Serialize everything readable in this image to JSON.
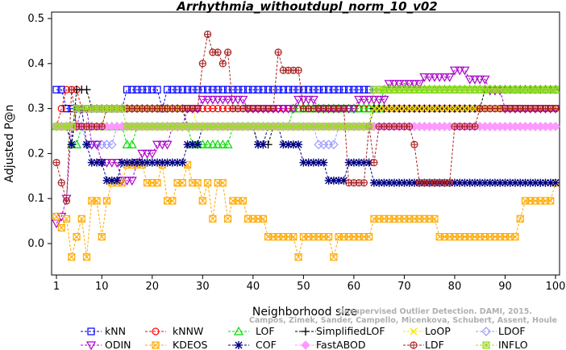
{
  "chart_data": {
    "type": "line",
    "title": "Arrhythmia_withoutdupl_norm_10_v02",
    "xlabel": "Neighborhood size",
    "ylabel": "Adjusted P@n",
    "xlim": [
      1,
      100
    ],
    "ylim": [
      -0.05,
      0.5
    ],
    "x_ticks": [
      1,
      10,
      20,
      30,
      40,
      50,
      60,
      70,
      80,
      90,
      100
    ],
    "y_ticks": [
      0.0,
      0.1,
      0.2,
      0.3,
      0.4,
      0.5
    ],
    "y_tick_labels": [
      "0.0",
      "0.1",
      "0.2",
      "0.3",
      "0.4",
      "0.5"
    ],
    "grid": false,
    "legend_position": "bottom",
    "watermark": [
      "Campos, Zimek, Sander, Campello, Micenkova, Schubert, Assent, Houle",
      "Unsupervised Outlier Detection. DAMI, 2015."
    ],
    "series": [
      {
        "name": "kNN",
        "color": "#0000ff",
        "marker": "square",
        "segments": [
          {
            "from": 1,
            "to": 2,
            "y": 0.342
          },
          {
            "from": 3,
            "to": 14,
            "y": 0.3
          },
          {
            "from": 15,
            "to": 21,
            "y": 0.342
          },
          {
            "from": 22,
            "to": 22,
            "y": 0.3
          },
          {
            "from": 23,
            "to": 100,
            "y": 0.342
          }
        ]
      },
      {
        "name": "kNNW",
        "color": "#ff0000",
        "marker": "circle",
        "segments": [
          {
            "from": 1,
            "to": 1,
            "y": 0.26
          },
          {
            "from": 2,
            "to": 2,
            "y": 0.3
          },
          {
            "from": 3,
            "to": 5,
            "y": 0.342
          },
          {
            "from": 6,
            "to": 26,
            "y": 0.3
          },
          {
            "from": 27,
            "to": 100,
            "y": 0.3
          }
        ]
      },
      {
        "name": "LOF",
        "color": "#00dd00",
        "marker": "triangle-up",
        "segments": [
          {
            "from": 1,
            "to": 3,
            "y": 0.26
          },
          {
            "from": 4,
            "to": 5,
            "y": 0.22
          },
          {
            "from": 6,
            "to": 14,
            "y": 0.26
          },
          {
            "from": 15,
            "to": 16,
            "y": 0.22
          },
          {
            "from": 17,
            "to": 27,
            "y": 0.26
          },
          {
            "from": 28,
            "to": 35,
            "y": 0.22
          },
          {
            "from": 36,
            "to": 47,
            "y": 0.26
          },
          {
            "from": 48,
            "to": 56,
            "y": 0.3
          },
          {
            "from": 57,
            "to": 65,
            "y": 0.3
          },
          {
            "from": 66,
            "to": 100,
            "y": 0.342
          }
        ]
      },
      {
        "name": "SimplifiedLOF",
        "color": "#000000",
        "marker": "plus",
        "segments": [
          {
            "from": 1,
            "to": 3,
            "y": 0.26
          },
          {
            "from": 4,
            "to": 4,
            "y": 0.22
          },
          {
            "from": 5,
            "to": 7,
            "y": 0.342
          },
          {
            "from": 8,
            "to": 15,
            "y": 0.3
          },
          {
            "from": 16,
            "to": 26,
            "y": 0.3
          },
          {
            "from": 27,
            "to": 40,
            "y": 0.26
          },
          {
            "from": 41,
            "to": 43,
            "y": 0.22
          },
          {
            "from": 44,
            "to": 63,
            "y": 0.26
          },
          {
            "from": 64,
            "to": 85,
            "y": 0.3
          },
          {
            "from": 86,
            "to": 100,
            "y": 0.342
          }
        ]
      },
      {
        "name": "LoOP",
        "color": "#f2e600",
        "marker": "cross",
        "segments": [
          {
            "from": 1,
            "to": 10,
            "y": 0.26
          },
          {
            "from": 11,
            "to": 28,
            "y": 0.3
          },
          {
            "from": 29,
            "to": 63,
            "y": 0.26
          },
          {
            "from": 64,
            "to": 100,
            "y": 0.3
          }
        ]
      },
      {
        "name": "LDOF",
        "color": "#9999ff",
        "marker": "diamond",
        "segments": [
          {
            "from": 1,
            "to": 6,
            "y": 0.26
          },
          {
            "from": 7,
            "to": 12,
            "y": 0.22
          },
          {
            "from": 13,
            "to": 33,
            "y": 0.26
          },
          {
            "from": 34,
            "to": 52,
            "y": 0.26
          },
          {
            "from": 53,
            "to": 56,
            "y": 0.22
          },
          {
            "from": 57,
            "to": 84,
            "y": 0.26
          },
          {
            "from": 85,
            "to": 100,
            "y": 0.26
          }
        ]
      },
      {
        "name": "ODIN",
        "color": "#aa00cc",
        "marker": "triangle-down",
        "segments": [
          {
            "from": 1,
            "to": 1,
            "y": 0.045
          },
          {
            "from": 2,
            "to": 2,
            "y": 0.06
          },
          {
            "from": 3,
            "to": 3,
            "y": 0.1
          },
          {
            "from": 4,
            "to": 5,
            "y": 0.26
          },
          {
            "from": 6,
            "to": 7,
            "y": 0.3
          },
          {
            "from": 8,
            "to": 9,
            "y": 0.22
          },
          {
            "from": 10,
            "to": 13,
            "y": 0.18
          },
          {
            "from": 14,
            "to": 16,
            "y": 0.14
          },
          {
            "from": 17,
            "to": 17,
            "y": 0.18
          },
          {
            "from": 18,
            "to": 20,
            "y": 0.2
          },
          {
            "from": 21,
            "to": 23,
            "y": 0.22
          },
          {
            "from": 24,
            "to": 26,
            "y": 0.26
          },
          {
            "from": 27,
            "to": 29,
            "y": 0.3
          },
          {
            "from": 30,
            "to": 38,
            "y": 0.32
          },
          {
            "from": 39,
            "to": 48,
            "y": 0.3
          },
          {
            "from": 49,
            "to": 52,
            "y": 0.32
          },
          {
            "from": 53,
            "to": 60,
            "y": 0.3
          },
          {
            "from": 61,
            "to": 66,
            "y": 0.32
          },
          {
            "from": 67,
            "to": 73,
            "y": 0.355
          },
          {
            "from": 74,
            "to": 79,
            "y": 0.37
          },
          {
            "from": 80,
            "to": 82,
            "y": 0.385
          },
          {
            "from": 83,
            "to": 86,
            "y": 0.365
          },
          {
            "from": 87,
            "to": 89,
            "y": 0.34
          },
          {
            "from": 90,
            "to": 100,
            "y": 0.3
          }
        ]
      },
      {
        "name": "KDEOS",
        "color": "#ffaa00",
        "marker": "square-x",
        "segments": [
          {
            "from": 1,
            "to": 1,
            "y": 0.06
          },
          {
            "from": 2,
            "to": 2,
            "y": 0.035
          },
          {
            "from": 3,
            "to": 3,
            "y": 0.055
          },
          {
            "from": 4,
            "to": 4,
            "y": -0.03
          },
          {
            "from": 5,
            "to": 5,
            "y": 0.015
          },
          {
            "from": 6,
            "to": 6,
            "y": 0.055
          },
          {
            "from": 7,
            "to": 7,
            "y": -0.03
          },
          {
            "from": 8,
            "to": 9,
            "y": 0.095
          },
          {
            "from": 10,
            "to": 10,
            "y": 0.015
          },
          {
            "from": 11,
            "to": 11,
            "y": 0.095
          },
          {
            "from": 12,
            "to": 14,
            "y": 0.135
          },
          {
            "from": 15,
            "to": 18,
            "y": 0.175
          },
          {
            "from": 19,
            "to": 21,
            "y": 0.135
          },
          {
            "from": 22,
            "to": 22,
            "y": 0.175
          },
          {
            "from": 23,
            "to": 24,
            "y": 0.095
          },
          {
            "from": 25,
            "to": 26,
            "y": 0.135
          },
          {
            "from": 27,
            "to": 27,
            "y": 0.175
          },
          {
            "from": 28,
            "to": 29,
            "y": 0.135
          },
          {
            "from": 30,
            "to": 30,
            "y": 0.095
          },
          {
            "from": 31,
            "to": 31,
            "y": 0.135
          },
          {
            "from": 32,
            "to": 32,
            "y": 0.055
          },
          {
            "from": 33,
            "to": 34,
            "y": 0.135
          },
          {
            "from": 35,
            "to": 35,
            "y": 0.055
          },
          {
            "from": 36,
            "to": 38,
            "y": 0.095
          },
          {
            "from": 39,
            "to": 42,
            "y": 0.055
          },
          {
            "from": 43,
            "to": 48,
            "y": 0.015
          },
          {
            "from": 49,
            "to": 49,
            "y": -0.03
          },
          {
            "from": 50,
            "to": 55,
            "y": 0.015
          },
          {
            "from": 56,
            "to": 56,
            "y": -0.03
          },
          {
            "from": 57,
            "to": 63,
            "y": 0.015
          },
          {
            "from": 64,
            "to": 76,
            "y": 0.055
          },
          {
            "from": 77,
            "to": 92,
            "y": 0.015
          },
          {
            "from": 93,
            "to": 93,
            "y": 0.055
          },
          {
            "from": 94,
            "to": 99,
            "y": 0.095
          },
          {
            "from": 100,
            "to": 100,
            "y": 0.135
          }
        ]
      },
      {
        "name": "COF",
        "color": "#000080",
        "marker": "asterisk",
        "segments": [
          {
            "from": 1,
            "to": 3,
            "y": 0.26
          },
          {
            "from": 4,
            "to": 4,
            "y": 0.22
          },
          {
            "from": 5,
            "to": 6,
            "y": 0.3
          },
          {
            "from": 7,
            "to": 7,
            "y": 0.22
          },
          {
            "from": 8,
            "to": 10,
            "y": 0.18
          },
          {
            "from": 11,
            "to": 13,
            "y": 0.14
          },
          {
            "from": 14,
            "to": 18,
            "y": 0.18
          },
          {
            "from": 19,
            "to": 26,
            "y": 0.18
          },
          {
            "from": 27,
            "to": 29,
            "y": 0.22
          },
          {
            "from": 30,
            "to": 40,
            "y": 0.26
          },
          {
            "from": 41,
            "to": 42,
            "y": 0.22
          },
          {
            "from": 43,
            "to": 45,
            "y": 0.26
          },
          {
            "from": 46,
            "to": 49,
            "y": 0.22
          },
          {
            "from": 50,
            "to": 54,
            "y": 0.18
          },
          {
            "from": 55,
            "to": 58,
            "y": 0.14
          },
          {
            "from": 59,
            "to": 63,
            "y": 0.18
          },
          {
            "from": 64,
            "to": 100,
            "y": 0.135
          }
        ]
      },
      {
        "name": "FastABOD",
        "color": "#ff99ff",
        "marker": "diamond-filled",
        "segments": [
          {
            "from": 1,
            "to": 100,
            "y": 0.26
          }
        ]
      },
      {
        "name": "LDF",
        "color": "#aa2222",
        "marker": "circle-plus",
        "segments": [
          {
            "from": 1,
            "to": 1,
            "y": 0.18
          },
          {
            "from": 2,
            "to": 2,
            "y": 0.135
          },
          {
            "from": 3,
            "to": 3,
            "y": 0.095
          },
          {
            "from": 4,
            "to": 4,
            "y": 0.342
          },
          {
            "from": 5,
            "to": 10,
            "y": 0.26
          },
          {
            "from": 11,
            "to": 22,
            "y": 0.3
          },
          {
            "from": 23,
            "to": 29,
            "y": 0.3
          },
          {
            "from": 30,
            "to": 30,
            "y": 0.4
          },
          {
            "from": 31,
            "to": 31,
            "y": 0.465
          },
          {
            "from": 32,
            "to": 33,
            "y": 0.425
          },
          {
            "from": 34,
            "to": 34,
            "y": 0.4
          },
          {
            "from": 35,
            "to": 35,
            "y": 0.425
          },
          {
            "from": 36,
            "to": 44,
            "y": 0.3
          },
          {
            "from": 45,
            "to": 45,
            "y": 0.425
          },
          {
            "from": 46,
            "to": 49,
            "y": 0.385
          },
          {
            "from": 50,
            "to": 58,
            "y": 0.3
          },
          {
            "from": 59,
            "to": 62,
            "y": 0.135
          },
          {
            "from": 63,
            "to": 63,
            "y": 0.26
          },
          {
            "from": 64,
            "to": 64,
            "y": 0.18
          },
          {
            "from": 65,
            "to": 71,
            "y": 0.26
          },
          {
            "from": 72,
            "to": 72,
            "y": 0.22
          },
          {
            "from": 73,
            "to": 79,
            "y": 0.135
          },
          {
            "from": 80,
            "to": 84,
            "y": 0.26
          },
          {
            "from": 85,
            "to": 100,
            "y": 0.3
          }
        ]
      },
      {
        "name": "INFLO",
        "color": "#99dd22",
        "marker": "square-star",
        "segments": [
          {
            "from": 1,
            "to": 4,
            "y": 0.26
          },
          {
            "from": 5,
            "to": 14,
            "y": 0.3
          },
          {
            "from": 15,
            "to": 27,
            "y": 0.26
          },
          {
            "from": 28,
            "to": 63,
            "y": 0.26
          },
          {
            "from": 64,
            "to": 100,
            "y": 0.342
          }
        ]
      }
    ]
  }
}
